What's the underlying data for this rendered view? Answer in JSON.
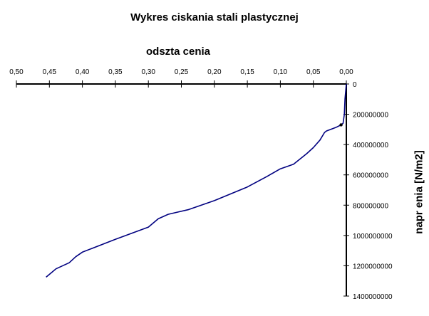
{
  "chart_data": {
    "type": "line",
    "title": "Wykres   ciskania stali plastycznej",
    "xlabel": "odszta cenia",
    "ylabel": "napr    enia [N/m2]",
    "x_reversed": true,
    "y_inverted": true,
    "xlim": [
      0,
      0.5
    ],
    "ylim": [
      0,
      1400000000
    ],
    "xticks": [
      "0,50",
      "0,45",
      "0,40",
      "0,35",
      "0,30",
      "0,25",
      "0,20",
      "0,15",
      "0,10",
      "0,05",
      "0,00"
    ],
    "xtick_values": [
      0.5,
      0.45,
      0.4,
      0.35,
      0.3,
      0.25,
      0.2,
      0.15,
      0.1,
      0.05,
      0.0
    ],
    "yticks": [
      "0",
      "200000000",
      "400000000",
      "600000000",
      "800000000",
      "1000000000",
      "1200000000",
      "1400000000"
    ],
    "ytick_values": [
      0,
      200000000,
      400000000,
      600000000,
      800000000,
      1000000000,
      1200000000,
      1400000000
    ],
    "series": [
      {
        "color": "#000080",
        "x": [
          0.0,
          0.002,
          0.003,
          0.005,
          0.008,
          0.015,
          0.03,
          0.033,
          0.04,
          0.05,
          0.06,
          0.08,
          0.1,
          0.12,
          0.15,
          0.2,
          0.24,
          0.27,
          0.285,
          0.3,
          0.35,
          0.4,
          0.41,
          0.42,
          0.44,
          0.455
        ],
        "y": [
          0,
          100000000,
          200000000,
          260000000,
          270000000,
          285000000,
          310000000,
          320000000,
          370000000,
          420000000,
          460000000,
          530000000,
          560000000,
          610000000,
          680000000,
          770000000,
          830000000,
          860000000,
          890000000,
          945000000,
          1025000000,
          1110000000,
          1140000000,
          1180000000,
          1220000000,
          1275000000
        ]
      }
    ],
    "markers": [
      {
        "x": 0.008,
        "y": 270000000
      }
    ]
  }
}
